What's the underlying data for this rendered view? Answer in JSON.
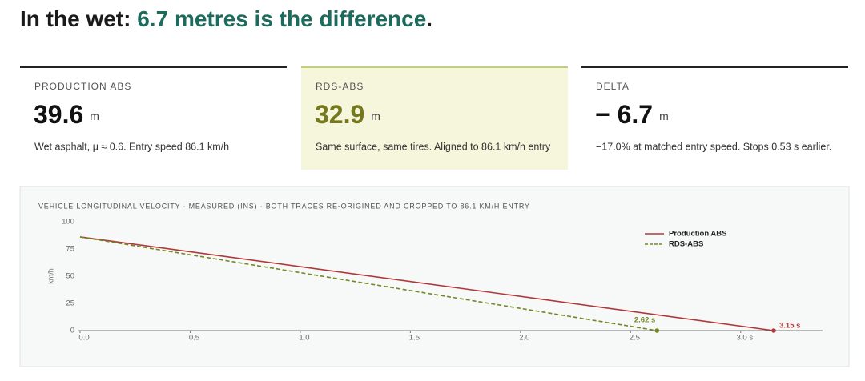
{
  "header": {
    "title_prefix": "In the wet: ",
    "title_highlight": "6.7 metres is the difference",
    "title_suffix": "."
  },
  "cards": [
    {
      "label": "PRODUCTION ABS",
      "value": "39.6",
      "unit": "m",
      "note": "Wet asphalt, μ ≈ 0.6. Entry speed 86.1 km/h"
    },
    {
      "label": "RDS-ABS",
      "value": "32.9",
      "unit": "m",
      "note": "Same surface, same tires. Aligned to 86.1 km/h entry"
    },
    {
      "label": "DELTA",
      "value": "− 6.7",
      "unit": "m",
      "note": "−17.0% at matched entry speed. Stops 0.53 s earlier."
    }
  ],
  "chart_data": {
    "type": "line",
    "title": "VEHICLE LONGITUDINAL VELOCITY · MEASURED (INS) · BOTH TRACES RE-ORIGINED AND CROPPED TO 86.1 KM/H ENTRY",
    "y_label": "km/h",
    "xlim": [
      0,
      3.35
    ],
    "ylim": [
      0,
      100
    ],
    "xticks": [
      {
        "value": 0,
        "label": "0.0"
      },
      {
        "value": 0.5,
        "label": "0.5"
      },
      {
        "value": 1,
        "label": "1.0"
      },
      {
        "value": 1.5,
        "label": "1.5"
      },
      {
        "value": 2,
        "label": "2.0"
      },
      {
        "value": 2.5,
        "label": "2.5"
      },
      {
        "value": 3,
        "label": "3.0 s"
      }
    ],
    "yticks": [
      0,
      25,
      50,
      75,
      100
    ],
    "grid": false,
    "legend": "upper right",
    "series": [
      {
        "name": "Production ABS",
        "color": "#b0383a",
        "dashed": false,
        "x": [
          0,
          3.15
        ],
        "values": [
          86.1,
          0
        ],
        "end_label": "3.15 s"
      },
      {
        "name": "RDS-ABS",
        "color": "#6f8a22",
        "dashed": true,
        "x": [
          0,
          2.62
        ],
        "values": [
          86.1,
          0
        ],
        "end_label": "2.62 s"
      }
    ]
  }
}
